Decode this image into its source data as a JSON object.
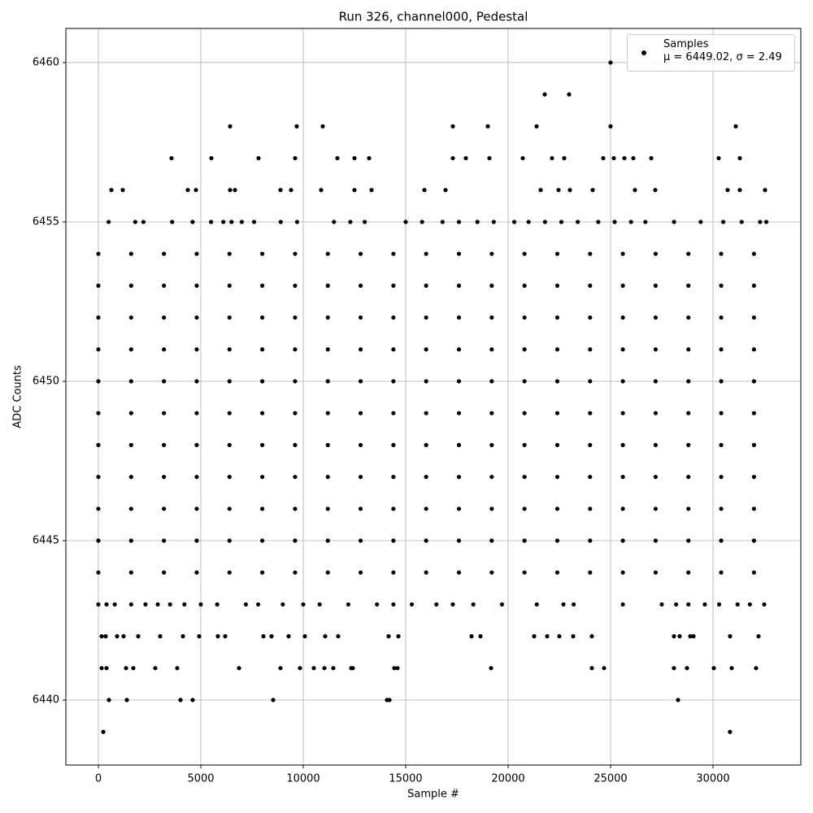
{
  "chart_data": {
    "type": "scatter",
    "title": "Run 326, channel000, Pedestal",
    "x_label": "Sample #",
    "y_label": "ADC Counts",
    "xlim": [
      -1587,
      34286
    ],
    "ylim": [
      6437.96,
      6461.07
    ],
    "xticks": [
      0,
      5000,
      10000,
      15000,
      20000,
      25000,
      30000
    ],
    "yticks": [
      6440,
      6445,
      6450,
      6455,
      6460
    ],
    "grid": true,
    "legend": "upper right",
    "series": [
      {
        "name": "Samples\nμ = 6449.02, σ = 2.49",
        "color": "#000000",
        "x": [
          0,
          1600,
          3200,
          4800,
          6400,
          8000,
          9600,
          11200,
          12800,
          14400,
          16000,
          17600,
          19200,
          20800,
          22400,
          24000,
          25600,
          27200,
          28800,
          30400,
          32000,
          0,
          1600,
          3200,
          4800,
          6400,
          8000,
          9600,
          11200,
          12800,
          14400,
          16000,
          17600,
          19200,
          20800,
          22400,
          24000,
          25600,
          27200,
          28800,
          30400,
          32000,
          0,
          1600,
          3200,
          4800,
          6400,
          8000,
          9600,
          11200,
          12800,
          14400,
          16000,
          17600,
          19200,
          20800,
          22400,
          24000,
          25600,
          27200,
          28800,
          30400,
          32000,
          0,
          1600,
          3200,
          4800,
          6400,
          8000,
          9600,
          11200,
          12800,
          14400,
          16000,
          17600,
          19200,
          20800,
          22400,
          24000,
          25600,
          27200,
          28800,
          30400,
          32000,
          0,
          1600,
          3200,
          4800,
          6400,
          8000,
          9600,
          11200,
          12800,
          14400,
          16000,
          17600,
          19200,
          20800,
          22400,
          24000,
          25600,
          27200,
          28800,
          30400,
          32000,
          0,
          1600,
          3200,
          4800,
          6400,
          8000,
          9600,
          11200,
          12800,
          14400,
          16000,
          17600,
          19200,
          20800,
          22400,
          24000,
          25600,
          27200,
          28800,
          30400,
          32000,
          0,
          1600,
          3200,
          4800,
          6400,
          8000,
          9600,
          11200,
          12800,
          14400,
          16000,
          17600,
          19200,
          20800,
          22400,
          24000,
          25600,
          27200,
          28800,
          30400,
          32000,
          0,
          1600,
          3200,
          4800,
          6400,
          8000,
          9600,
          11200,
          12800,
          14400,
          16000,
          17600,
          19200,
          20800,
          22400,
          24000,
          25600,
          27200,
          28800,
          30400,
          32000,
          0,
          1600,
          3200,
          4800,
          6400,
          8000,
          9600,
          11200,
          12800,
          14400,
          16000,
          17600,
          19200,
          20800,
          22400,
          24000,
          25600,
          27200,
          28800,
          30400,
          32000,
          0,
          1600,
          3200,
          4800,
          6400,
          8000,
          9600,
          11200,
          12800,
          14400,
          16000,
          17600,
          19200,
          20800,
          22400,
          24000,
          25600,
          27200,
          28800,
          30400,
          32000,
          0,
          1600,
          3200,
          4800,
          6400,
          8000,
          9600,
          11200,
          12800,
          14400,
          16000,
          17600,
          19200,
          20800,
          22400,
          24000,
          25600,
          27200,
          28800,
          30400,
          32000,
          500,
          1800,
          2200,
          3600,
          4600,
          5500,
          6100,
          6500,
          7000,
          7600,
          8900,
          9700,
          11500,
          12300,
          13000,
          15000,
          15800,
          16800,
          17600,
          18500,
          19300,
          20300,
          21000,
          21800,
          22600,
          23400,
          24400,
          25200,
          26000,
          26700,
          28100,
          29400,
          30500,
          31400,
          32300,
          32600,
          0,
          400,
          800,
          1600,
          2300,
          2900,
          3500,
          4200,
          5000,
          5800,
          7200,
          7800,
          9000,
          10000,
          10800,
          12200,
          13600,
          14400,
          15300,
          16500,
          17300,
          18300,
          19700,
          21400,
          22700,
          23200,
          25600,
          27500,
          28200,
          28800,
          29600,
          30300,
          31200,
          31800,
          32500,
          635,
          1190,
          4365,
          4762,
          6429,
          6667,
          8889,
          9405,
          10873,
          12500,
          13333,
          15913,
          16944,
          21587,
          22460,
          23016,
          24127,
          26190,
          27183,
          30714,
          31310,
          32540,
          3571,
          5516,
          7817,
          9603,
          11667,
          12500,
          13214,
          17302,
          17937,
          19087,
          20714,
          22143,
          22738,
          24643,
          25159,
          25675,
          26111,
          26984,
          30278,
          31310,
          6429,
          9683,
          10952,
          17302,
          19008,
          21389,
          25000,
          31111,
          21786,
          22976,
          25000,
          159,
          357,
          913,
          1230,
          1944,
          3016,
          4127,
          4921,
          5833,
          6190,
          8056,
          8452,
          9286,
          10079,
          11071,
          11706,
          14167,
          14643,
          18214,
          18651,
          21270,
          21905,
          22500,
          23175,
          24087,
          28095,
          28373,
          28889,
          29048,
          30833,
          32222,
          159,
          397,
          1349,
          1706,
          2778,
          3849,
          6865,
          8889,
          9841,
          10516,
          11032,
          11468,
          12341,
          12421,
          14444,
          14603,
          19167,
          24087,
          24683,
          28095,
          28730,
          30040,
          30913,
          32103,
          516,
          1389,
          4008,
          4603,
          8532,
          14087,
          14206,
          28294,
          240,
          30830
        ],
        "values": [
          6444,
          6444,
          6444,
          6444,
          6444,
          6444,
          6444,
          6444,
          6444,
          6444,
          6444,
          6444,
          6444,
          6444,
          6444,
          6444,
          6444,
          6444,
          6444,
          6444,
          6444,
          6445,
          6445,
          6445,
          6445,
          6445,
          6445,
          6445,
          6445,
          6445,
          6445,
          6445,
          6445,
          6445,
          6445,
          6445,
          6445,
          6445,
          6445,
          6445,
          6445,
          6445,
          6446,
          6446,
          6446,
          6446,
          6446,
          6446,
          6446,
          6446,
          6446,
          6446,
          6446,
          6446,
          6446,
          6446,
          6446,
          6446,
          6446,
          6446,
          6446,
          6446,
          6446,
          6447,
          6447,
          6447,
          6447,
          6447,
          6447,
          6447,
          6447,
          6447,
          6447,
          6447,
          6447,
          6447,
          6447,
          6447,
          6447,
          6447,
          6447,
          6447,
          6447,
          6447,
          6448,
          6448,
          6448,
          6448,
          6448,
          6448,
          6448,
          6448,
          6448,
          6448,
          6448,
          6448,
          6448,
          6448,
          6448,
          6448,
          6448,
          6448,
          6448,
          6448,
          6448,
          6449,
          6449,
          6449,
          6449,
          6449,
          6449,
          6449,
          6449,
          6449,
          6449,
          6449,
          6449,
          6449,
          6449,
          6449,
          6449,
          6449,
          6449,
          6449,
          6449,
          6449,
          6450,
          6450,
          6450,
          6450,
          6450,
          6450,
          6450,
          6450,
          6450,
          6450,
          6450,
          6450,
          6450,
          6450,
          6450,
          6450,
          6450,
          6450,
          6450,
          6450,
          6450,
          6451,
          6451,
          6451,
          6451,
          6451,
          6451,
          6451,
          6451,
          6451,
          6451,
          6451,
          6451,
          6451,
          6451,
          6451,
          6451,
          6451,
          6451,
          6451,
          6451,
          6451,
          6452,
          6452,
          6452,
          6452,
          6452,
          6452,
          6452,
          6452,
          6452,
          6452,
          6452,
          6452,
          6452,
          6452,
          6452,
          6452,
          6452,
          6452,
          6452,
          6452,
          6452,
          6453,
          6453,
          6453,
          6453,
          6453,
          6453,
          6453,
          6453,
          6453,
          6453,
          6453,
          6453,
          6453,
          6453,
          6453,
          6453,
          6453,
          6453,
          6453,
          6453,
          6453,
          6454,
          6454,
          6454,
          6454,
          6454,
          6454,
          6454,
          6454,
          6454,
          6454,
          6454,
          6454,
          6454,
          6454,
          6454,
          6454,
          6454,
          6454,
          6454,
          6454,
          6454,
          6455,
          6455,
          6455,
          6455,
          6455,
          6455,
          6455,
          6455,
          6455,
          6455,
          6455,
          6455,
          6455,
          6455,
          6455,
          6455,
          6455,
          6455,
          6455,
          6455,
          6455,
          6455,
          6455,
          6455,
          6455,
          6455,
          6455,
          6455,
          6455,
          6455,
          6455,
          6455,
          6455,
          6455,
          6455,
          6455,
          6443,
          6443,
          6443,
          6443,
          6443,
          6443,
          6443,
          6443,
          6443,
          6443,
          6443,
          6443,
          6443,
          6443,
          6443,
          6443,
          6443,
          6443,
          6443,
          6443,
          6443,
          6443,
          6443,
          6443,
          6443,
          6443,
          6443,
          6443,
          6443,
          6443,
          6443,
          6443,
          6443,
          6443,
          6443,
          6456,
          6456,
          6456,
          6456,
          6456,
          6456,
          6456,
          6456,
          6456,
          6456,
          6456,
          6456,
          6456,
          6456,
          6456,
          6456,
          6456,
          6456,
          6456,
          6456,
          6456,
          6456,
          6457,
          6457,
          6457,
          6457,
          6457,
          6457,
          6457,
          6457,
          6457,
          6457,
          6457,
          6457,
          6457,
          6457,
          6457,
          6457,
          6457,
          6457,
          6457,
          6457,
          6458,
          6458,
          6458,
          6458,
          6458,
          6458,
          6458,
          6458,
          6459,
          6459,
          6460,
          6442,
          6442,
          6442,
          6442,
          6442,
          6442,
          6442,
          6442,
          6442,
          6442,
          6442,
          6442,
          6442,
          6442,
          6442,
          6442,
          6442,
          6442,
          6442,
          6442,
          6442,
          6442,
          6442,
          6442,
          6442,
          6442,
          6442,
          6442,
          6442,
          6442,
          6442,
          6441,
          6441,
          6441,
          6441,
          6441,
          6441,
          6441,
          6441,
          6441,
          6441,
          6441,
          6441,
          6441,
          6441,
          6441,
          6441,
          6441,
          6441,
          6441,
          6441,
          6441,
          6441,
          6441,
          6441,
          6440,
          6440,
          6440,
          6440,
          6440,
          6440,
          6440,
          6440,
          6439,
          6439
        ]
      }
    ]
  }
}
